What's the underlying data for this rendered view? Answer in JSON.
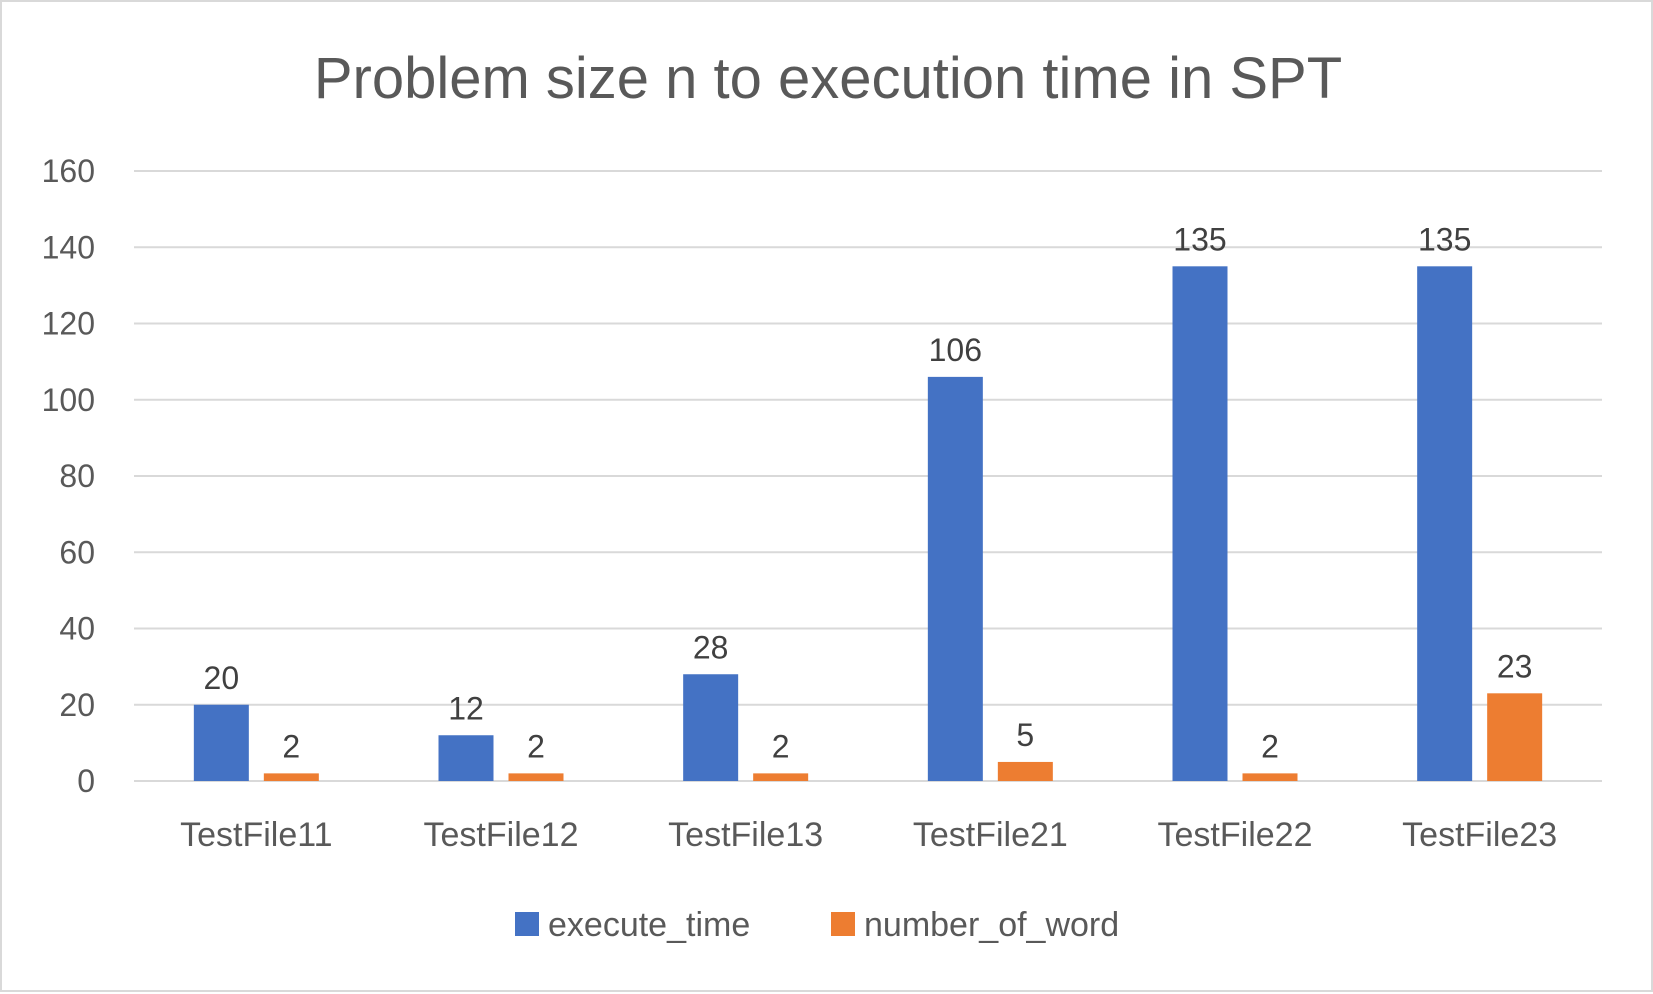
{
  "chart_data": {
    "type": "bar",
    "title": "Problem size n to execution time in SPT",
    "categories": [
      "TestFile11",
      "TestFile12",
      "TestFile13",
      "TestFile21",
      "TestFile22",
      "TestFile23"
    ],
    "series": [
      {
        "name": "execute_time",
        "values": [
          20,
          12,
          28,
          106,
          135,
          135
        ],
        "color": "#4472C4"
      },
      {
        "name": "number_of_word",
        "values": [
          2,
          2,
          2,
          5,
          2,
          23
        ],
        "color": "#ED7D31"
      }
    ],
    "ylim": [
      0,
      160
    ],
    "yticks": [
      0,
      20,
      40,
      60,
      80,
      100,
      120,
      140,
      160
    ],
    "grid": true,
    "legend": "bottom",
    "data_labels": true,
    "gridline_color": "#d9d9d9",
    "text_color": "#595959"
  }
}
